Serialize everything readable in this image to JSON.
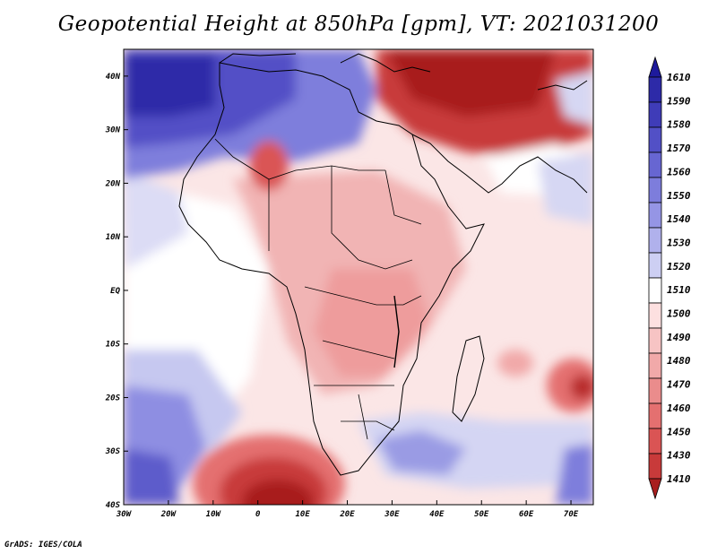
{
  "title": "Geopotential Height at 850hPa [gpm], VT: 2021031200",
  "credit": "GrADS: IGES/COLA",
  "map": {
    "variable": "Geopotential Height",
    "level": "850hPa",
    "units": "gpm",
    "valid_time": "2021031200",
    "lon_range": [
      -30,
      75
    ],
    "lat_range": [
      -40,
      45
    ],
    "lat_ticks": [
      {
        "value": 40,
        "label": "40N"
      },
      {
        "value": 30,
        "label": "30N"
      },
      {
        "value": 20,
        "label": "20N"
      },
      {
        "value": 10,
        "label": "10N"
      },
      {
        "value": 0,
        "label": "EQ"
      },
      {
        "value": -10,
        "label": "10S"
      },
      {
        "value": -20,
        "label": "20S"
      },
      {
        "value": -30,
        "label": "30S"
      },
      {
        "value": -40,
        "label": "40S"
      }
    ],
    "lon_ticks": [
      {
        "value": -30,
        "label": "30W"
      },
      {
        "value": -20,
        "label": "20W"
      },
      {
        "value": -10,
        "label": "10W"
      },
      {
        "value": 0,
        "label": "0"
      },
      {
        "value": 10,
        "label": "10E"
      },
      {
        "value": 20,
        "label": "20E"
      },
      {
        "value": 30,
        "label": "30E"
      },
      {
        "value": 40,
        "label": "40E"
      },
      {
        "value": 50,
        "label": "50E"
      },
      {
        "value": 60,
        "label": "60E"
      },
      {
        "value": 70,
        "label": "70E"
      }
    ]
  },
  "colorbar": [
    {
      "label": "1610",
      "color": "#1e1a9c"
    },
    {
      "label": "1590",
      "color": "#2d2aa8"
    },
    {
      "label": "1580",
      "color": "#3f3cb8"
    },
    {
      "label": "1570",
      "color": "#5250c6"
    },
    {
      "label": "1560",
      "color": "#6766d2"
    },
    {
      "label": "1550",
      "color": "#7d7ddc"
    },
    {
      "label": "1540",
      "color": "#9595e5"
    },
    {
      "label": "1530",
      "color": "#b0b1ec"
    },
    {
      "label": "1520",
      "color": "#cdcff3"
    },
    {
      "label": "1510",
      "color": "#ffffff"
    },
    {
      "label": "1500",
      "color": "#fde0e0"
    },
    {
      "label": "1490",
      "color": "#f7c4c4"
    },
    {
      "label": "1480",
      "color": "#f1a9a9"
    },
    {
      "label": "1470",
      "color": "#ea8c8c"
    },
    {
      "label": "1460",
      "color": "#e47070"
    },
    {
      "label": "1450",
      "color": "#da5454"
    },
    {
      "label": "1430",
      "color": "#c83a3a"
    },
    {
      "label": "1410",
      "color": "#a81e1e"
    }
  ]
}
